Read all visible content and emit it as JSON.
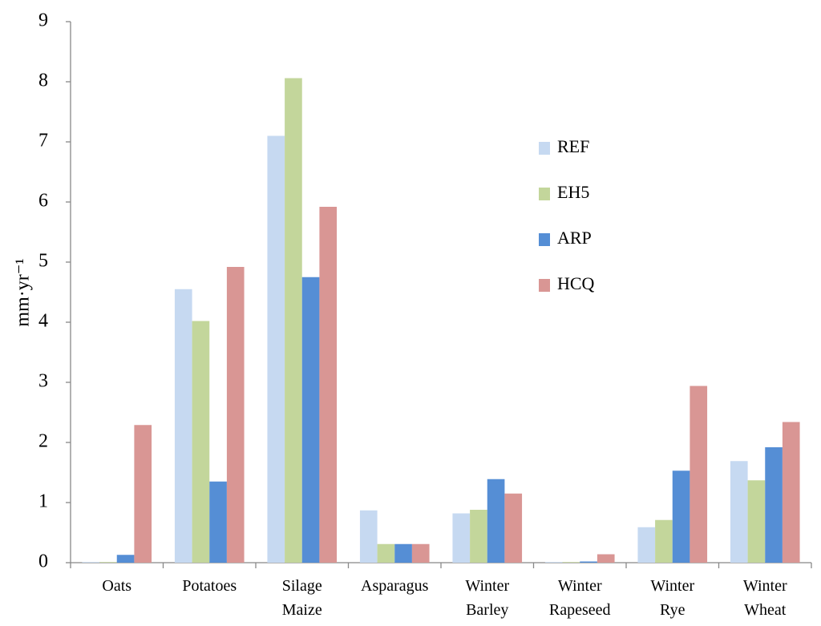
{
  "chart_data": {
    "type": "bar",
    "y_label": "mm·yr⁻¹",
    "categories": [
      "Oats",
      "Potatoes",
      "Silage Maize",
      "Asparagus",
      "Winter Barley",
      "Winter Rapeseed",
      "Winter Rye",
      "Winter Wheat"
    ],
    "series": [
      {
        "name": "REF",
        "color": "#c6d9f1",
        "values": [
          0.01,
          4.55,
          7.1,
          0.87,
          0.82,
          0.01,
          0.59,
          1.69
        ]
      },
      {
        "name": "EH5",
        "color": "#c3d69b",
        "values": [
          0.01,
          4.02,
          8.06,
          0.31,
          0.88,
          0.01,
          0.71,
          1.37
        ]
      },
      {
        "name": "ARP",
        "color": "#558ed5",
        "values": [
          0.13,
          1.35,
          4.75,
          0.31,
          1.39,
          0.02,
          1.53,
          1.92
        ]
      },
      {
        "name": "HCQ",
        "color": "#d99694",
        "values": [
          2.29,
          4.92,
          5.92,
          0.31,
          1.15,
          0.14,
          2.94,
          2.34
        ]
      }
    ],
    "ylim": [
      0,
      9
    ],
    "yticks": [
      0,
      1,
      2,
      3,
      4,
      5,
      6,
      7,
      8,
      9
    ],
    "legend": "right"
  }
}
